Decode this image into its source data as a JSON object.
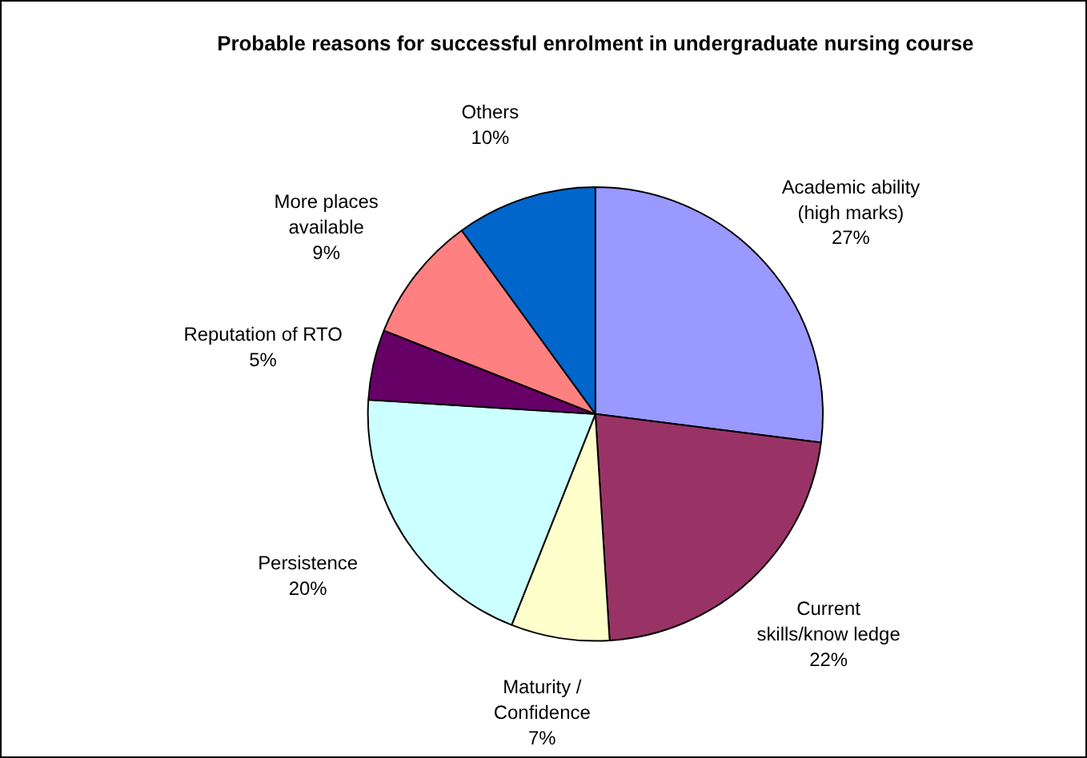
{
  "chart_data": {
    "type": "pie",
    "title": "Probable reasons for successful enrolment in undergraduate nursing course",
    "categories": [
      "Academic ability\n(high marks)",
      "Current\nskills/know ledge",
      "Maturity /\nConfidence",
      "Persistence",
      "Reputation of RTO",
      "More places\navailable",
      "Others"
    ],
    "values": [
      27,
      22,
      7,
      20,
      5,
      9,
      10
    ],
    "value_labels": [
      "27%",
      "22%",
      "7%",
      "20%",
      "5%",
      "9%",
      "10%"
    ],
    "colors": [
      "#9999ff",
      "#993366",
      "#ffffcc",
      "#ccffff",
      "#660066",
      "#ff8080",
      "#0066cc"
    ],
    "legend": false
  }
}
